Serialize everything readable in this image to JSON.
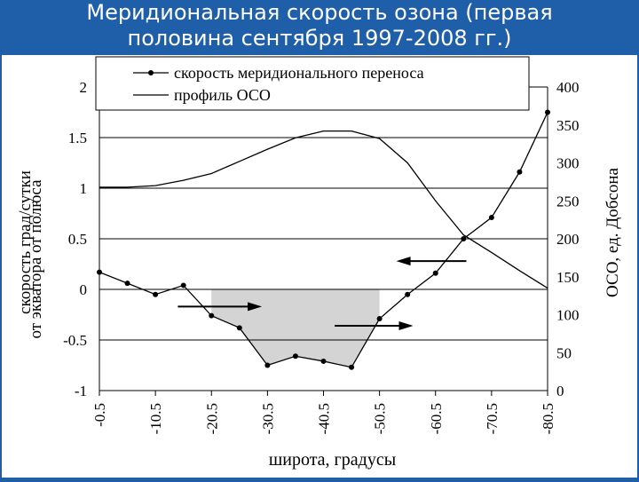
{
  "title_lines": [
    "Меридиональная скорость озона (первая",
    "половина сентября 1997-2008 гг.)"
  ],
  "colors": {
    "background": "#1f5ea8",
    "title_text": "#ffffff",
    "plot_fill": "#d4d4d4",
    "line": "#000000"
  },
  "chart_data": {
    "type": "line",
    "x_label": "широта, градусы",
    "y_left_label_lines": [
      "скорость  град/сутки",
      "от экватора          от полюса"
    ],
    "y_right_label": "ОСО, ед. Добсона",
    "x_ticks": [
      "-0.5",
      "-10.5",
      "-20.5",
      "-30.5",
      "-40.5",
      "-50.5",
      "-60.5",
      "-70.5",
      "-80.5"
    ],
    "x_tick_values": [
      -0.5,
      -10.5,
      -20.5,
      -30.5,
      -40.5,
      -50.5,
      -60.5,
      -70.5,
      -80.5
    ],
    "xlim": [
      -0.5,
      -80.5
    ],
    "y_left_ticks": [
      "2",
      "1.5",
      "1",
      "0.5",
      "0",
      "-0.5",
      "-1"
    ],
    "y_left_tick_values": [
      2,
      1.5,
      1,
      0.5,
      0,
      -0.5,
      -1
    ],
    "ylim_left": [
      -1,
      2
    ],
    "y_right_ticks": [
      "400",
      "350",
      "300",
      "250",
      "200",
      "150",
      "100",
      "50",
      "0"
    ],
    "y_right_tick_values": [
      400,
      350,
      300,
      250,
      200,
      150,
      100,
      50,
      0
    ],
    "ylim_right": [
      0,
      400
    ],
    "grid": "horizontal",
    "legend_position": "top",
    "series": [
      {
        "name": "скорость меридионального переноса",
        "axis": "left",
        "marker": "circle",
        "x": [
          -0.5,
          -5.5,
          -10.5,
          -15.5,
          -20.5,
          -25.5,
          -30.5,
          -35.5,
          -40.5,
          -45.5,
          -50.5,
          -55.5,
          -60.5,
          -65.5,
          -70.5,
          -75.5,
          -80.5
        ],
        "y": [
          0.17,
          0.06,
          -0.05,
          0.04,
          -0.26,
          -0.38,
          -0.75,
          -0.66,
          -0.71,
          -0.77,
          -0.29,
          -0.05,
          0.16,
          0.5,
          0.71,
          1.16,
          1.75
        ]
      },
      {
        "name": "профиль ОСО",
        "axis": "right",
        "marker": "none",
        "x": [
          -0.5,
          -5.5,
          -10.5,
          -15.5,
          -20.5,
          -25.5,
          -30.5,
          -35.5,
          -40.5,
          -45.5,
          -50.5,
          -55.5,
          -60.5,
          -65.5,
          -70.5,
          -75.5,
          -80.5
        ],
        "y": [
          268,
          268,
          270,
          277,
          286,
          302,
          318,
          333,
          342,
          342,
          332,
          300,
          250,
          205,
          182,
          158,
          135
        ]
      }
    ],
    "shaded_region": {
      "description": "area between zero line and negative velocity",
      "x_range": [
        -20.5,
        -50.5
      ]
    },
    "arrows": [
      {
        "direction": "right",
        "x_from": -14.5,
        "x_to": -29.5,
        "y": -0.17
      },
      {
        "direction": "right",
        "x_from": -42.5,
        "x_to": -56.5,
        "y": -0.36
      },
      {
        "direction": "left",
        "x_from": -66,
        "x_to": -53.5,
        "y": 0.28
      }
    ]
  }
}
